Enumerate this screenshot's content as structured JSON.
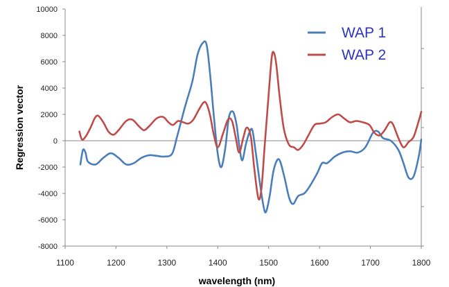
{
  "chart_data": {
    "type": "line",
    "xlabel": "wavelength (nm)",
    "ylabel": "Regression vector",
    "xlim": [
      1100,
      1800
    ],
    "ylim": [
      -8000,
      10000
    ],
    "xticks": [
      1100,
      1200,
      1300,
      1400,
      1500,
      1600,
      1700,
      1800
    ],
    "yticks": [
      -8000,
      -6000,
      -4000,
      -2000,
      0,
      2000,
      4000,
      6000,
      8000,
      10000
    ],
    "legend_position": "top-right",
    "grid": false,
    "series": [
      {
        "name": "WAP 1",
        "color": "#4a7ebb",
        "points": [
          [
            1130,
            -1800
          ],
          [
            1135,
            -700
          ],
          [
            1140,
            -900
          ],
          [
            1145,
            -1600
          ],
          [
            1160,
            -1800
          ],
          [
            1175,
            -1300
          ],
          [
            1190,
            -950
          ],
          [
            1205,
            -1300
          ],
          [
            1220,
            -1800
          ],
          [
            1235,
            -1700
          ],
          [
            1250,
            -1300
          ],
          [
            1265,
            -1100
          ],
          [
            1280,
            -1150
          ],
          [
            1295,
            -1200
          ],
          [
            1310,
            -1000
          ],
          [
            1320,
            300
          ],
          [
            1335,
            2500
          ],
          [
            1350,
            4500
          ],
          [
            1360,
            6500
          ],
          [
            1370,
            7400
          ],
          [
            1378,
            7300
          ],
          [
            1385,
            5000
          ],
          [
            1392,
            2000
          ],
          [
            1400,
            -1000
          ],
          [
            1407,
            -2000
          ],
          [
            1415,
            -500
          ],
          [
            1422,
            1800
          ],
          [
            1430,
            2200
          ],
          [
            1437,
            1200
          ],
          [
            1442,
            -300
          ],
          [
            1448,
            -1500
          ],
          [
            1455,
            -300
          ],
          [
            1462,
            600
          ],
          [
            1468,
            800
          ],
          [
            1475,
            -1000
          ],
          [
            1482,
            -3000
          ],
          [
            1490,
            -5000
          ],
          [
            1495,
            -5400
          ],
          [
            1502,
            -4200
          ],
          [
            1510,
            -2200
          ],
          [
            1520,
            -1400
          ],
          [
            1530,
            -2600
          ],
          [
            1540,
            -4300
          ],
          [
            1548,
            -4800
          ],
          [
            1558,
            -4200
          ],
          [
            1570,
            -4000
          ],
          [
            1580,
            -3500
          ],
          [
            1595,
            -2500
          ],
          [
            1605,
            -1700
          ],
          [
            1615,
            -1700
          ],
          [
            1630,
            -1200
          ],
          [
            1645,
            -900
          ],
          [
            1660,
            -800
          ],
          [
            1675,
            -900
          ],
          [
            1690,
            -500
          ],
          [
            1705,
            600
          ],
          [
            1715,
            700
          ],
          [
            1725,
            200
          ],
          [
            1740,
            0
          ],
          [
            1755,
            -700
          ],
          [
            1765,
            -1700
          ],
          [
            1775,
            -2800
          ],
          [
            1785,
            -2700
          ],
          [
            1795,
            -1200
          ],
          [
            1800,
            100
          ]
        ]
      },
      {
        "name": "WAP 2",
        "color": "#be4b48",
        "points": [
          [
            1128,
            700
          ],
          [
            1133,
            100
          ],
          [
            1140,
            300
          ],
          [
            1150,
            1000
          ],
          [
            1158,
            1700
          ],
          [
            1165,
            1900
          ],
          [
            1175,
            1400
          ],
          [
            1185,
            700
          ],
          [
            1195,
            450
          ],
          [
            1205,
            800
          ],
          [
            1220,
            1500
          ],
          [
            1232,
            1600
          ],
          [
            1245,
            1100
          ],
          [
            1255,
            800
          ],
          [
            1265,
            1100
          ],
          [
            1280,
            1700
          ],
          [
            1293,
            1800
          ],
          [
            1303,
            1400
          ],
          [
            1312,
            1200
          ],
          [
            1322,
            1500
          ],
          [
            1332,
            1400
          ],
          [
            1342,
            1300
          ],
          [
            1352,
            1600
          ],
          [
            1362,
            2300
          ],
          [
            1372,
            2900
          ],
          [
            1378,
            2800
          ],
          [
            1385,
            1900
          ],
          [
            1392,
            500
          ],
          [
            1400,
            -500
          ],
          [
            1410,
            500
          ],
          [
            1420,
            1600
          ],
          [
            1428,
            1500
          ],
          [
            1435,
            300
          ],
          [
            1442,
            -900
          ],
          [
            1450,
            200
          ],
          [
            1457,
            1000
          ],
          [
            1465,
            300
          ],
          [
            1472,
            -2200
          ],
          [
            1480,
            -4400
          ],
          [
            1486,
            -3600
          ],
          [
            1492,
            -500
          ],
          [
            1500,
            3500
          ],
          [
            1506,
            6300
          ],
          [
            1510,
            6700
          ],
          [
            1515,
            5800
          ],
          [
            1522,
            3200
          ],
          [
            1530,
            900
          ],
          [
            1540,
            -300
          ],
          [
            1550,
            -500
          ],
          [
            1558,
            -700
          ],
          [
            1568,
            -300
          ],
          [
            1578,
            400
          ],
          [
            1590,
            1200
          ],
          [
            1600,
            1300
          ],
          [
            1612,
            1400
          ],
          [
            1625,
            1800
          ],
          [
            1637,
            2000
          ],
          [
            1648,
            1700
          ],
          [
            1660,
            1400
          ],
          [
            1672,
            1500
          ],
          [
            1685,
            1400
          ],
          [
            1698,
            1200
          ],
          [
            1708,
            600
          ],
          [
            1718,
            400
          ],
          [
            1728,
            800
          ],
          [
            1738,
            1400
          ],
          [
            1745,
            1200
          ],
          [
            1755,
            200
          ],
          [
            1765,
            -500
          ],
          [
            1775,
            -100
          ],
          [
            1785,
            300
          ],
          [
            1795,
            1500
          ],
          [
            1800,
            2200
          ]
        ]
      }
    ]
  }
}
